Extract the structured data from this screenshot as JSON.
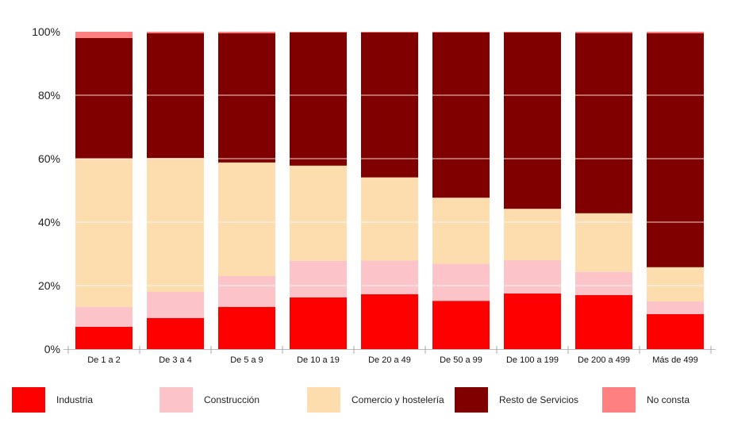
{
  "chart_data": {
    "type": "bar",
    "stacked": true,
    "percent": true,
    "categories": [
      "De 1 a 2",
      "De 3 a 4",
      "De 5 a 9",
      "De 10 a 19",
      "De 20 a 49",
      "De 50 a 99",
      "De 100 a 199",
      "De 200 a 499",
      "Más de 499"
    ],
    "series": [
      {
        "name": "Industria",
        "color": "#ff0000",
        "values": [
          7.0,
          9.8,
          13.3,
          16.3,
          17.3,
          15.2,
          17.5,
          17.0,
          11.0
        ]
      },
      {
        "name": "Construcción",
        "color": "#fcc4c8",
        "values": [
          6.3,
          8.2,
          9.7,
          11.5,
          10.6,
          11.7,
          10.5,
          7.3,
          4.0
        ]
      },
      {
        "name": "Comercio y hostelería",
        "color": "#fddcad",
        "values": [
          46.7,
          42.2,
          35.8,
          30.0,
          26.2,
          20.8,
          16.2,
          18.5,
          10.8
        ]
      },
      {
        "name": "Resto de Servicios",
        "color": "#800000",
        "values": [
          38.0,
          39.3,
          40.7,
          42.0,
          45.7,
          52.1,
          55.6,
          56.8,
          73.7
        ]
      },
      {
        "name": "No consta",
        "color": "#ff8080",
        "values": [
          2.0,
          0.5,
          0.5,
          0.2,
          0.2,
          0.2,
          0.2,
          0.4,
          0.5
        ]
      }
    ],
    "y_ticks": [
      "0%",
      "20%",
      "40%",
      "60%",
      "80%",
      "100%"
    ],
    "ylim": [
      0,
      100
    ],
    "grid": true,
    "legend_position": "bottom",
    "title": "",
    "xlabel": "",
    "ylabel": ""
  }
}
